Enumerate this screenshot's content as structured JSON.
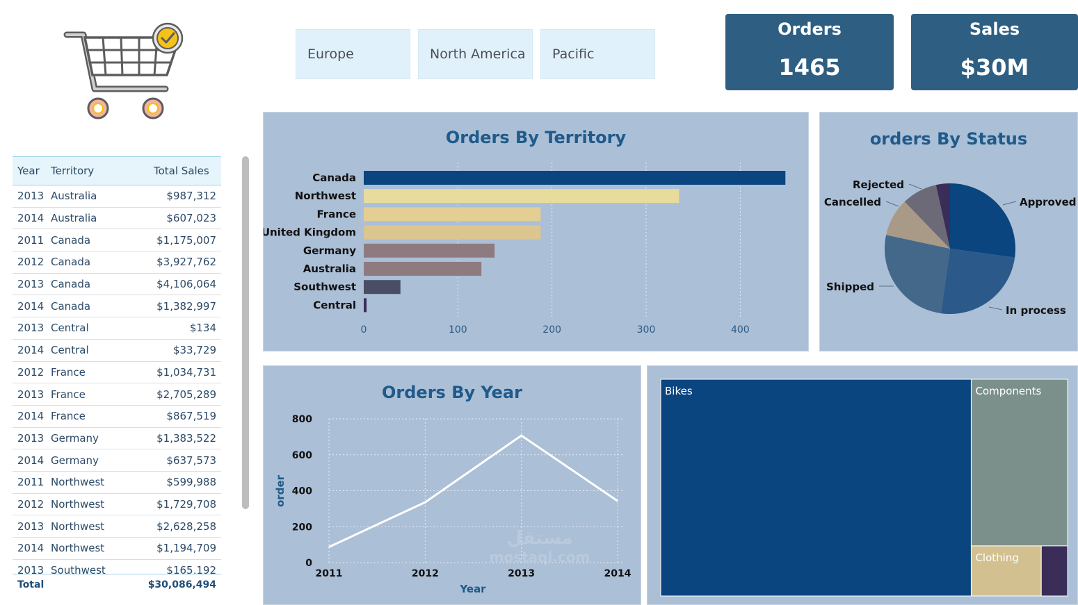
{
  "slicers": [
    "Europe",
    "North America",
    "Pacific"
  ],
  "kpis": {
    "orders_label": "Orders",
    "orders_value": "1465",
    "sales_label": "Sales",
    "sales_value": "$30M"
  },
  "table": {
    "headers": [
      "Year",
      "Territory",
      "Total Sales"
    ],
    "rows": [
      [
        "2013",
        "Australia",
        "$987,312"
      ],
      [
        "2014",
        "Australia",
        "$607,023"
      ],
      [
        "2011",
        "Canada",
        "$1,175,007"
      ],
      [
        "2012",
        "Canada",
        "$3,927,762"
      ],
      [
        "2013",
        "Canada",
        "$4,106,064"
      ],
      [
        "2014",
        "Canada",
        "$1,382,997"
      ],
      [
        "2013",
        "Central",
        "$134"
      ],
      [
        "2014",
        "Central",
        "$33,729"
      ],
      [
        "2012",
        "France",
        "$1,034,731"
      ],
      [
        "2013",
        "France",
        "$2,705,289"
      ],
      [
        "2014",
        "France",
        "$867,519"
      ],
      [
        "2013",
        "Germany",
        "$1,383,522"
      ],
      [
        "2014",
        "Germany",
        "$637,573"
      ],
      [
        "2011",
        "Northwest",
        "$599,988"
      ],
      [
        "2012",
        "Northwest",
        "$1,729,708"
      ],
      [
        "2013",
        "Northwest",
        "$2,628,258"
      ],
      [
        "2014",
        "Northwest",
        "$1,194,709"
      ],
      [
        "2013",
        "Southwest",
        "$165,192"
      ]
    ],
    "total_label": "Total",
    "total_value": "$30,086,494"
  },
  "watermark": {
    "text_ar": "مستقل",
    "text_en": "mostaql.com"
  },
  "colors": {
    "navy": "#0b4580",
    "panel": "#abbfd6",
    "kpi": "#2e5f82",
    "title": "#1f5a8a",
    "bar_colors": [
      "#0b4580",
      "#e8dc9c",
      "#e3cf93",
      "#dbc690",
      "#8e7b7f",
      "#8e7b7f",
      "#4a4d63",
      "#3a2d57"
    ],
    "pie_colors": [
      "#0b4580",
      "#2b5a8a",
      "#43688a",
      "#a89a86",
      "#6d6a78",
      "#3a2d57"
    ],
    "treemap_colors": [
      "#0b4580",
      "#7b908a",
      "#d2c090",
      "#3a2d57"
    ]
  },
  "chart_data": [
    {
      "type": "bar",
      "title": "Orders By Territory",
      "categories": [
        "Canada",
        "Northwest",
        "France",
        "United Kingdom",
        "Germany",
        "Australia",
        "Southwest",
        "Central"
      ],
      "values": [
        448,
        335,
        188,
        188,
        139,
        125,
        39,
        3
      ],
      "xlim": [
        0,
        450
      ],
      "xticks": [
        "0",
        "100",
        "200",
        "300",
        "400"
      ],
      "xtick_values": [
        0,
        100,
        200,
        300,
        400
      ]
    },
    {
      "type": "pie",
      "title": "orders By Status",
      "labels": [
        "Approved",
        "In process",
        "Shipped",
        "Cancelled",
        "Rejected",
        ""
      ],
      "values": [
        26,
        24,
        25,
        9,
        8.4,
        3.3
      ]
    },
    {
      "type": "line",
      "title": "Orders By Year",
      "x": [
        "2011",
        "2012",
        "2013",
        "2014"
      ],
      "values": [
        87,
        336,
        707,
        343
      ],
      "ylim": [
        0,
        800
      ],
      "yticks": [
        "0",
        "200",
        "400",
        "600",
        "800"
      ],
      "ytick_values": [
        0,
        200,
        400,
        600,
        800
      ],
      "xlabel": "Year",
      "ylabel": "order"
    },
    {
      "type": "treemap",
      "labels": [
        "Bikes",
        "Components",
        "Clothing",
        ""
      ],
      "values": [
        76.7,
        18.3,
        4.0,
        1.5
      ]
    }
  ]
}
